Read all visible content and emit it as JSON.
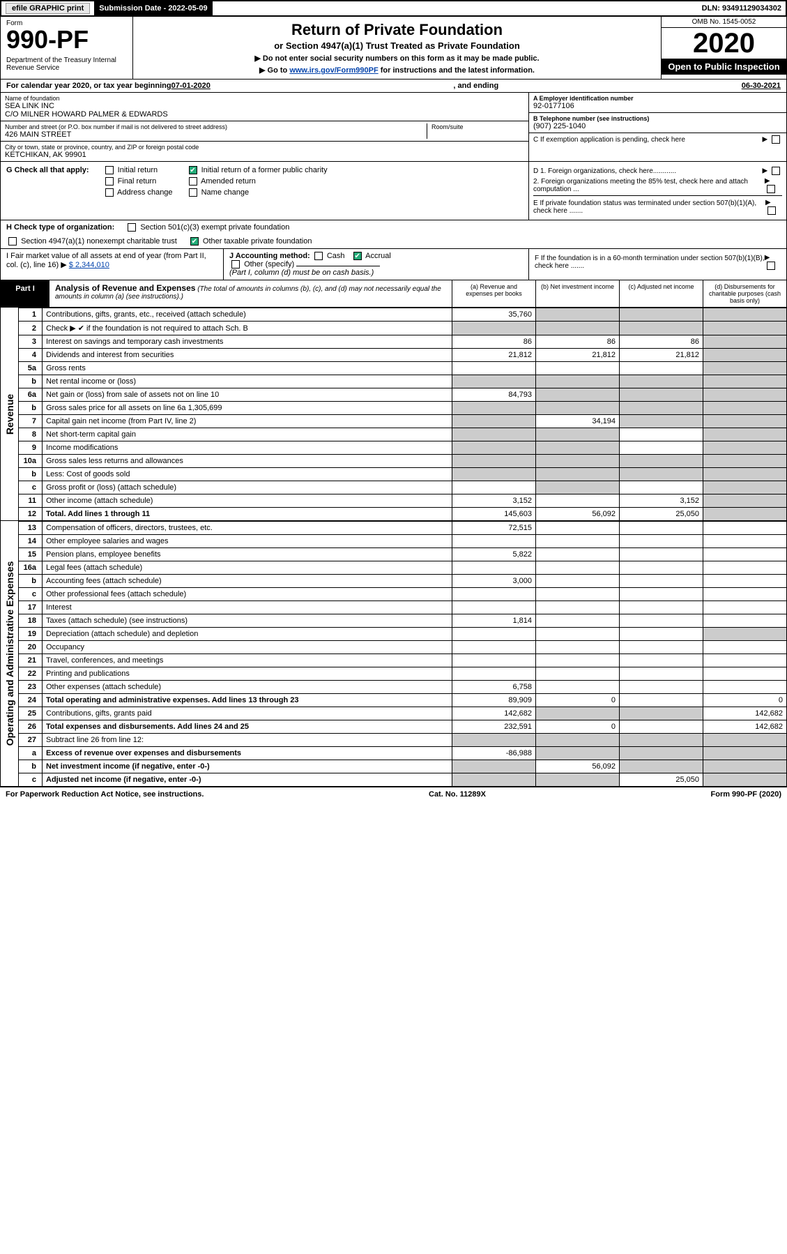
{
  "topbar": {
    "efile": "efile GRAPHIC print",
    "sub_label": "Submission Date - 2022-05-09",
    "dln": "DLN: 93491129034302"
  },
  "header": {
    "form_word": "Form",
    "form_num": "990-PF",
    "dept": "Department of the Treasury\nInternal Revenue Service",
    "title": "Return of Private Foundation",
    "sub1": "or Section 4947(a)(1) Trust Treated as Private Foundation",
    "sub2": "▶ Do not enter social security numbers on this form as it may be made public.",
    "sub3_pre": "▶ Go to ",
    "sub3_link": "www.irs.gov/Form990PF",
    "sub3_post": " for instructions and the latest information.",
    "omb": "OMB No. 1545-0052",
    "year": "2020",
    "open": "Open to Public Inspection"
  },
  "cal": {
    "prefix": "For calendar year 2020, or tax year beginning ",
    "begin": "07-01-2020",
    "mid": " , and ending ",
    "end": "06-30-2021"
  },
  "info": {
    "name_lbl": "Name of foundation",
    "name1": "SEA LINK INC",
    "name2": "C/O MILNER HOWARD PALMER & EDWARDS",
    "addr_lbl": "Number and street (or P.O. box number if mail is not delivered to street address)",
    "addr": "426 MAIN STREET",
    "room_lbl": "Room/suite",
    "city_lbl": "City or town, state or province, country, and ZIP or foreign postal code",
    "city": "KETCHIKAN, AK  99901",
    "a_lbl": "A Employer identification number",
    "a_val": "92-0177106",
    "b_lbl": "B Telephone number (see instructions)",
    "b_val": "(907) 225-1040",
    "c_lbl": "C If exemption application is pending, check here",
    "d1": "D 1. Foreign organizations, check here............",
    "d2": "2. Foreign organizations meeting the 85% test, check here and attach computation ...",
    "e": "E  If private foundation status was terminated under section 507(b)(1)(A), check here .......",
    "f": "F  If the foundation is in a 60-month termination under section 507(b)(1)(B), check here .......",
    "g_lbl": "G Check all that apply:",
    "g_opts": [
      "Initial return",
      "Final return",
      "Address change",
      "Initial return of a former public charity",
      "Amended return",
      "Name change"
    ],
    "h_lbl": "H Check type of organization:",
    "h1": "Section 501(c)(3) exempt private foundation",
    "h2": "Section 4947(a)(1) nonexempt charitable trust",
    "h3": "Other taxable private foundation",
    "i_lbl": "I Fair market value of all assets at end of year (from Part II, col. (c), line 16) ▶",
    "i_val": "$  2,344,010",
    "j_lbl": "J Accounting method:",
    "j_cash": "Cash",
    "j_accrual": "Accrual",
    "j_other": "Other (specify)",
    "j_note": "(Part I, column (d) must be on cash basis.)"
  },
  "part1": {
    "label": "Part I",
    "title": "Analysis of Revenue and Expenses",
    "note": " (The total of amounts in columns (b), (c), and (d) may not necessarily equal the amounts in column (a) (see instructions).)",
    "col_a": "(a)   Revenue and expenses per books",
    "col_b": "(b)  Net investment income",
    "col_c": "(c)  Adjusted net income",
    "col_d": "(d)  Disbursements for charitable purposes (cash basis only)"
  },
  "sections": {
    "revenue": "Revenue",
    "expenses": "Operating and Administrative Expenses"
  },
  "rows": [
    {
      "n": "1",
      "d": "Contributions, gifts, grants, etc., received (attach schedule)",
      "a": "35,760",
      "b": "",
      "c": "",
      "dcol": "",
      "grey": [
        "b",
        "c",
        "d"
      ]
    },
    {
      "n": "2",
      "d": "Check ▶ ✔ if the foundation is not required to attach Sch. B",
      "a": "",
      "b": "",
      "c": "",
      "dcol": "",
      "grey": [
        "a",
        "b",
        "c",
        "d"
      ]
    },
    {
      "n": "3",
      "d": "Interest on savings and temporary cash investments",
      "a": "86",
      "b": "86",
      "c": "86",
      "dcol": "",
      "grey": [
        "d"
      ]
    },
    {
      "n": "4",
      "d": "Dividends and interest from securities",
      "a": "21,812",
      "b": "21,812",
      "c": "21,812",
      "dcol": "",
      "grey": [
        "d"
      ]
    },
    {
      "n": "5a",
      "d": "Gross rents",
      "a": "",
      "b": "",
      "c": "",
      "dcol": "",
      "grey": [
        "d"
      ]
    },
    {
      "n": "b",
      "d": "Net rental income or (loss)",
      "a": "",
      "b": "",
      "c": "",
      "dcol": "",
      "grey": [
        "a",
        "b",
        "c",
        "d"
      ]
    },
    {
      "n": "6a",
      "d": "Net gain or (loss) from sale of assets not on line 10",
      "a": "84,793",
      "b": "",
      "c": "",
      "dcol": "",
      "grey": [
        "b",
        "c",
        "d"
      ]
    },
    {
      "n": "b",
      "d": "Gross sales price for all assets on line 6a          1,305,699",
      "a": "",
      "b": "",
      "c": "",
      "dcol": "",
      "grey": [
        "a",
        "b",
        "c",
        "d"
      ]
    },
    {
      "n": "7",
      "d": "Capital gain net income (from Part IV, line 2)",
      "a": "",
      "b": "34,194",
      "c": "",
      "dcol": "",
      "grey": [
        "a",
        "c",
        "d"
      ]
    },
    {
      "n": "8",
      "d": "Net short-term capital gain",
      "a": "",
      "b": "",
      "c": "",
      "dcol": "",
      "grey": [
        "a",
        "b",
        "d"
      ]
    },
    {
      "n": "9",
      "d": "Income modifications",
      "a": "",
      "b": "",
      "c": "",
      "dcol": "",
      "grey": [
        "a",
        "b",
        "d"
      ]
    },
    {
      "n": "10a",
      "d": "Gross sales less returns and allowances",
      "a": "",
      "b": "",
      "c": "",
      "dcol": "",
      "grey": [
        "a",
        "b",
        "c",
        "d"
      ]
    },
    {
      "n": "b",
      "d": "Less: Cost of goods sold",
      "a": "",
      "b": "",
      "c": "",
      "dcol": "",
      "grey": [
        "a",
        "b",
        "c",
        "d"
      ]
    },
    {
      "n": "c",
      "d": "Gross profit or (loss) (attach schedule)",
      "a": "",
      "b": "",
      "c": "",
      "dcol": "",
      "grey": [
        "b",
        "d"
      ]
    },
    {
      "n": "11",
      "d": "Other income (attach schedule)",
      "a": "3,152",
      "b": "",
      "c": "3,152",
      "dcol": "",
      "grey": [
        "d"
      ]
    },
    {
      "n": "12",
      "d": "Total. Add lines 1 through 11",
      "a": "145,603",
      "b": "56,092",
      "c": "25,050",
      "dcol": "",
      "grey": [
        "d"
      ],
      "bold": true
    },
    {
      "n": "13",
      "d": "Compensation of officers, directors, trustees, etc.",
      "a": "72,515",
      "b": "",
      "c": "",
      "dcol": ""
    },
    {
      "n": "14",
      "d": "Other employee salaries and wages",
      "a": "",
      "b": "",
      "c": "",
      "dcol": ""
    },
    {
      "n": "15",
      "d": "Pension plans, employee benefits",
      "a": "5,822",
      "b": "",
      "c": "",
      "dcol": ""
    },
    {
      "n": "16a",
      "d": "Legal fees (attach schedule)",
      "a": "",
      "b": "",
      "c": "",
      "dcol": ""
    },
    {
      "n": "b",
      "d": "Accounting fees (attach schedule)",
      "a": "3,000",
      "b": "",
      "c": "",
      "dcol": ""
    },
    {
      "n": "c",
      "d": "Other professional fees (attach schedule)",
      "a": "",
      "b": "",
      "c": "",
      "dcol": ""
    },
    {
      "n": "17",
      "d": "Interest",
      "a": "",
      "b": "",
      "c": "",
      "dcol": ""
    },
    {
      "n": "18",
      "d": "Taxes (attach schedule) (see instructions)",
      "a": "1,814",
      "b": "",
      "c": "",
      "dcol": ""
    },
    {
      "n": "19",
      "d": "Depreciation (attach schedule) and depletion",
      "a": "",
      "b": "",
      "c": "",
      "dcol": "",
      "grey": [
        "d"
      ]
    },
    {
      "n": "20",
      "d": "Occupancy",
      "a": "",
      "b": "",
      "c": "",
      "dcol": ""
    },
    {
      "n": "21",
      "d": "Travel, conferences, and meetings",
      "a": "",
      "b": "",
      "c": "",
      "dcol": ""
    },
    {
      "n": "22",
      "d": "Printing and publications",
      "a": "",
      "b": "",
      "c": "",
      "dcol": ""
    },
    {
      "n": "23",
      "d": "Other expenses (attach schedule)",
      "a": "6,758",
      "b": "",
      "c": "",
      "dcol": ""
    },
    {
      "n": "24",
      "d": "Total operating and administrative expenses. Add lines 13 through 23",
      "a": "89,909",
      "b": "0",
      "c": "",
      "dcol": "0",
      "bold": true
    },
    {
      "n": "25",
      "d": "Contributions, gifts, grants paid",
      "a": "142,682",
      "b": "",
      "c": "",
      "dcol": "142,682",
      "grey": [
        "b",
        "c"
      ]
    },
    {
      "n": "26",
      "d": "Total expenses and disbursements. Add lines 24 and 25",
      "a": "232,591",
      "b": "0",
      "c": "",
      "dcol": "142,682",
      "bold": true
    },
    {
      "n": "27",
      "d": "Subtract line 26 from line 12:",
      "a": "",
      "b": "",
      "c": "",
      "dcol": "",
      "grey": [
        "a",
        "b",
        "c",
        "d"
      ]
    },
    {
      "n": "a",
      "d": "Excess of revenue over expenses and disbursements",
      "a": "-86,988",
      "b": "",
      "c": "",
      "dcol": "",
      "grey": [
        "b",
        "c",
        "d"
      ],
      "bold": true
    },
    {
      "n": "b",
      "d": "Net investment income (if negative, enter -0-)",
      "a": "",
      "b": "56,092",
      "c": "",
      "dcol": "",
      "grey": [
        "a",
        "c",
        "d"
      ],
      "bold": true
    },
    {
      "n": "c",
      "d": "Adjusted net income (if negative, enter -0-)",
      "a": "",
      "b": "",
      "c": "25,050",
      "dcol": "",
      "grey": [
        "a",
        "b",
        "d"
      ],
      "bold": true
    }
  ],
  "footer": {
    "left": "For Paperwork Reduction Act Notice, see instructions.",
    "mid": "Cat. No. 11289X",
    "right": "Form 990-PF (2020)"
  }
}
